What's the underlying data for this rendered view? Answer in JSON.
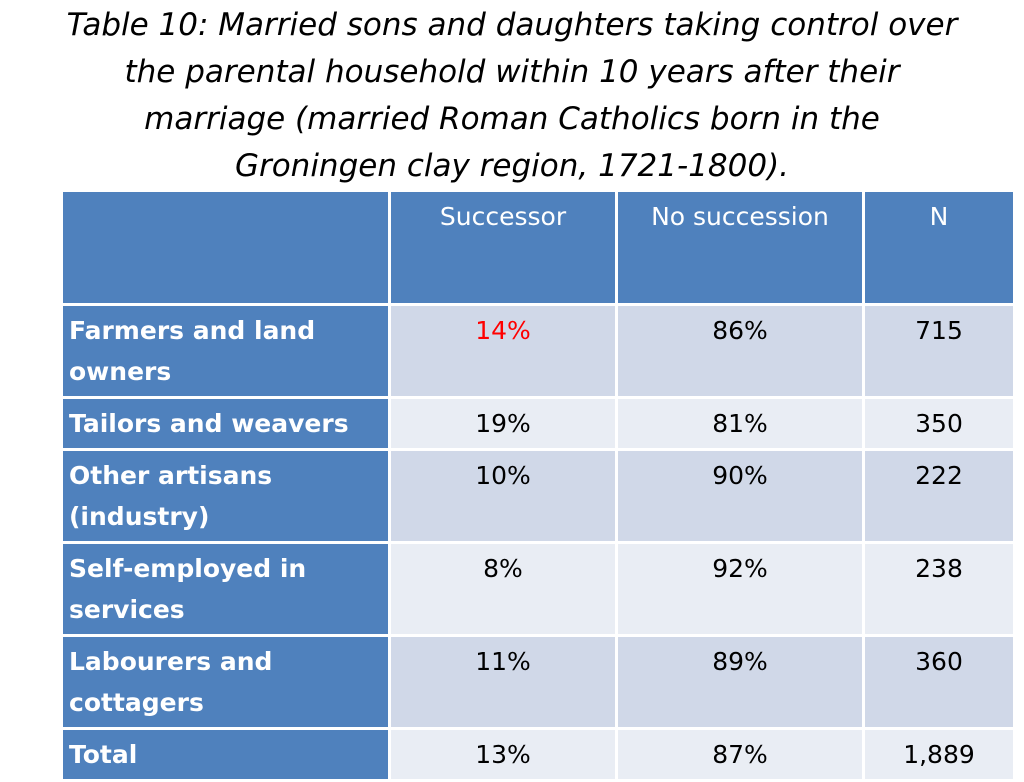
{
  "title_lines": [
    "Table 10: Married sons and daughters taking control over",
    "the parental household within 10 years after their",
    "marriage (married Roman Catholics born in the",
    "Groningen clay region, 1721-1800)."
  ],
  "table": {
    "headers": [
      "",
      "Successor",
      "No succession",
      "N"
    ],
    "rows": [
      {
        "label": "Farmers and land owners",
        "successor": "14%",
        "no_succession": "86%",
        "n": "715"
      },
      {
        "label": "Tailors and weavers",
        "successor": "19%",
        "no_succession": "81%",
        "n": "350"
      },
      {
        "label": "Other artisans (industry)",
        "successor": "10%",
        "no_succession": "90%",
        "n": "222"
      },
      {
        "label": "Self-employed in services",
        "successor": "8%",
        "no_succession": "92%",
        "n": "238"
      },
      {
        "label": "Labourers and cottagers",
        "successor": "11%",
        "no_succession": "89%",
        "n": "360"
      },
      {
        "label": "Total",
        "successor": "13%",
        "no_succession": "87%",
        "n": "1,889"
      }
    ]
  },
  "colors": {
    "header_bg": "#4f81bd",
    "row_odd_bg": "#d0d8e8",
    "row_even_bg": "#e9edf4",
    "highlight_text": "#ff0000"
  }
}
